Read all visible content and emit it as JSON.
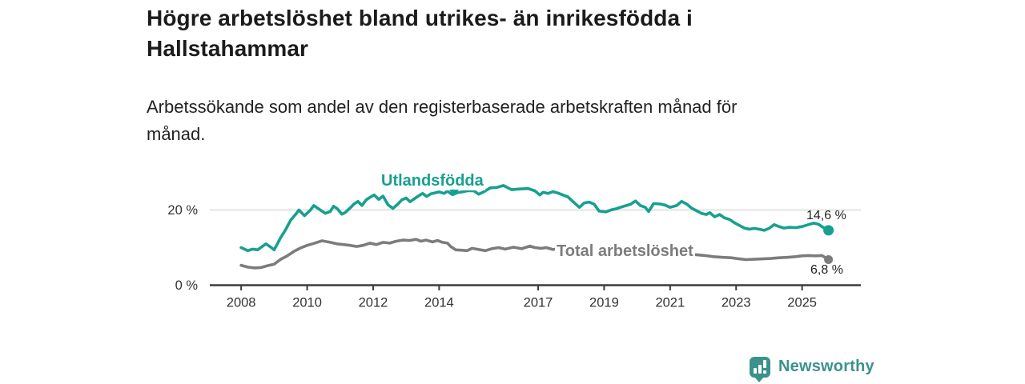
{
  "header": {
    "title_lines": [
      "Högre arbetslöshet bland utrikes- än inrikesfödda i",
      "Hallstahammar"
    ],
    "subtitle_lines": [
      "Arbetssökande som andel av den registerbaserade arbetskraften månad för",
      "månad."
    ]
  },
  "chart_data": {
    "type": "line",
    "unit": "%",
    "x_domain": [
      2007.05,
      2026.78
    ],
    "ylim": [
      0,
      28
    ],
    "grid": "single light horizontal gridline at 20 %",
    "legend_position": "inline labels on lines, value labels at line ends",
    "axis": {
      "line_color": "#3c3c3c",
      "grid_color": "#dbdbdb",
      "label_color": "#333333"
    },
    "x_ticks": [
      {
        "v": 2008,
        "label": "2008"
      },
      {
        "v": 2010,
        "label": "2010"
      },
      {
        "v": 2012,
        "label": "2012"
      },
      {
        "v": 2014,
        "label": "2014"
      },
      {
        "v": 2017,
        "label": "2017"
      },
      {
        "v": 2019,
        "label": "2019"
      },
      {
        "v": 2021,
        "label": "2021"
      },
      {
        "v": 2023,
        "label": "2023"
      },
      {
        "v": 2025,
        "label": "2025"
      }
    ],
    "y_ticks": [
      {
        "v": 0,
        "label": "0 %"
      },
      {
        "v": 20,
        "label": "20 %"
      }
    ],
    "series": [
      {
        "name": "Utlandsfödda",
        "color": "#17a08f",
        "end_label": "14,6 %",
        "end_value": 14.6,
        "points": [
          [
            2008.0,
            10.0
          ],
          [
            2008.2,
            9.2
          ],
          [
            2008.35,
            9.6
          ],
          [
            2008.5,
            9.4
          ],
          [
            2008.75,
            11.0
          ],
          [
            2008.9,
            10.1
          ],
          [
            2009.0,
            9.4
          ],
          [
            2009.2,
            12.7
          ],
          [
            2009.35,
            14.8
          ],
          [
            2009.5,
            17.3
          ],
          [
            2009.65,
            18.8
          ],
          [
            2009.75,
            20.0
          ],
          [
            2009.92,
            18.5
          ],
          [
            2010.1,
            20.0
          ],
          [
            2010.2,
            21.2
          ],
          [
            2010.35,
            20.3
          ],
          [
            2010.55,
            19.1
          ],
          [
            2010.7,
            19.6
          ],
          [
            2010.8,
            21.0
          ],
          [
            2010.92,
            20.3
          ],
          [
            2011.05,
            18.9
          ],
          [
            2011.15,
            19.3
          ],
          [
            2011.3,
            20.5
          ],
          [
            2011.42,
            21.6
          ],
          [
            2011.54,
            22.3
          ],
          [
            2011.66,
            21.2
          ],
          [
            2011.79,
            22.7
          ],
          [
            2011.91,
            23.4
          ],
          [
            2012.03,
            24.0
          ],
          [
            2012.17,
            22.8
          ],
          [
            2012.3,
            23.7
          ],
          [
            2012.45,
            21.4
          ],
          [
            2012.6,
            20.4
          ],
          [
            2012.75,
            21.6
          ],
          [
            2012.87,
            22.7
          ],
          [
            2013.0,
            23.2
          ],
          [
            2013.12,
            22.2
          ],
          [
            2013.25,
            23.0
          ],
          [
            2013.4,
            23.9
          ],
          [
            2013.5,
            24.4
          ],
          [
            2013.62,
            23.6
          ],
          [
            2013.75,
            24.3
          ],
          [
            2014.0,
            24.8
          ],
          [
            2014.15,
            24.4
          ],
          [
            2014.25,
            25.0
          ],
          [
            2014.4,
            24.1
          ],
          [
            2014.55,
            24.6
          ],
          [
            2014.7,
            24.8
          ],
          [
            2014.85,
            25.1
          ],
          [
            2015.05,
            25.1
          ],
          [
            2015.2,
            24.2
          ],
          [
            2015.35,
            24.8
          ],
          [
            2015.55,
            25.9
          ],
          [
            2015.75,
            26.0
          ],
          [
            2015.95,
            26.5
          ],
          [
            2016.2,
            25.4
          ],
          [
            2016.45,
            25.6
          ],
          [
            2016.7,
            25.7
          ],
          [
            2016.9,
            25.1
          ],
          [
            2017.05,
            24.0
          ],
          [
            2017.15,
            24.7
          ],
          [
            2017.3,
            24.4
          ],
          [
            2017.45,
            24.9
          ],
          [
            2017.6,
            24.5
          ],
          [
            2017.75,
            24.0
          ],
          [
            2017.9,
            23.5
          ],
          [
            2018.1,
            21.9
          ],
          [
            2018.25,
            20.7
          ],
          [
            2018.4,
            21.9
          ],
          [
            2018.55,
            22.1
          ],
          [
            2018.7,
            21.5
          ],
          [
            2018.85,
            19.7
          ],
          [
            2019.05,
            19.5
          ],
          [
            2019.2,
            20.0
          ],
          [
            2019.35,
            20.3
          ],
          [
            2019.6,
            21.0
          ],
          [
            2019.8,
            21.5
          ],
          [
            2019.95,
            22.4
          ],
          [
            2020.1,
            21.2
          ],
          [
            2020.25,
            20.7
          ],
          [
            2020.35,
            19.6
          ],
          [
            2020.5,
            21.7
          ],
          [
            2020.7,
            21.6
          ],
          [
            2020.85,
            21.3
          ],
          [
            2021.0,
            20.7
          ],
          [
            2021.2,
            21.2
          ],
          [
            2021.35,
            22.3
          ],
          [
            2021.5,
            21.6
          ],
          [
            2021.65,
            20.5
          ],
          [
            2021.8,
            19.8
          ],
          [
            2021.95,
            19.1
          ],
          [
            2022.1,
            18.8
          ],
          [
            2022.2,
            19.3
          ],
          [
            2022.35,
            18.2
          ],
          [
            2022.5,
            18.8
          ],
          [
            2022.65,
            17.9
          ],
          [
            2022.8,
            17.5
          ],
          [
            2022.95,
            16.6
          ],
          [
            2023.1,
            15.9
          ],
          [
            2023.25,
            15.2
          ],
          [
            2023.4,
            14.9
          ],
          [
            2023.55,
            15.1
          ],
          [
            2023.7,
            14.9
          ],
          [
            2023.85,
            14.6
          ],
          [
            2024.0,
            15.1
          ],
          [
            2024.15,
            16.1
          ],
          [
            2024.3,
            15.6
          ],
          [
            2024.45,
            15.2
          ],
          [
            2024.6,
            15.4
          ],
          [
            2024.8,
            15.3
          ],
          [
            2025.0,
            15.6
          ],
          [
            2025.15,
            16.0
          ],
          [
            2025.35,
            16.5
          ],
          [
            2025.5,
            16.2
          ],
          [
            2025.65,
            15.3
          ],
          [
            2025.8,
            14.6
          ]
        ]
      },
      {
        "name": "Total arbetslöshet",
        "color": "#7c7c7c",
        "end_label": "6,8 %",
        "end_value": 6.8,
        "points": [
          [
            2008.0,
            5.3
          ],
          [
            2008.2,
            4.8
          ],
          [
            2008.4,
            4.6
          ],
          [
            2008.6,
            4.7
          ],
          [
            2008.8,
            5.2
          ],
          [
            2009.0,
            5.6
          ],
          [
            2009.2,
            6.9
          ],
          [
            2009.4,
            7.8
          ],
          [
            2009.6,
            9.0
          ],
          [
            2009.8,
            9.9
          ],
          [
            2010.0,
            10.6
          ],
          [
            2010.2,
            11.1
          ],
          [
            2010.45,
            11.8
          ],
          [
            2010.7,
            11.4
          ],
          [
            2010.9,
            11.0
          ],
          [
            2011.1,
            10.8
          ],
          [
            2011.3,
            10.6
          ],
          [
            2011.5,
            10.3
          ],
          [
            2011.7,
            10.6
          ],
          [
            2011.9,
            11.2
          ],
          [
            2012.1,
            10.8
          ],
          [
            2012.3,
            11.4
          ],
          [
            2012.5,
            11.2
          ],
          [
            2012.7,
            11.7
          ],
          [
            2012.9,
            12.0
          ],
          [
            2013.1,
            11.9
          ],
          [
            2013.3,
            12.2
          ],
          [
            2013.45,
            11.7
          ],
          [
            2013.6,
            12.0
          ],
          [
            2013.8,
            11.5
          ],
          [
            2013.95,
            11.9
          ],
          [
            2014.1,
            11.4
          ],
          [
            2014.25,
            11.2
          ],
          [
            2014.35,
            10.3
          ],
          [
            2014.5,
            9.4
          ],
          [
            2014.7,
            9.3
          ],
          [
            2014.85,
            9.2
          ],
          [
            2015.0,
            9.8
          ],
          [
            2015.2,
            9.5
          ],
          [
            2015.4,
            9.2
          ],
          [
            2015.6,
            9.7
          ],
          [
            2015.8,
            10.0
          ],
          [
            2016.0,
            9.6
          ],
          [
            2016.25,
            10.1
          ],
          [
            2016.5,
            9.7
          ],
          [
            2016.75,
            10.4
          ],
          [
            2016.9,
            10.0
          ],
          [
            2017.1,
            9.8
          ],
          [
            2017.25,
            10.0
          ],
          [
            2017.45,
            9.5
          ],
          [
            2017.6,
            9.7
          ],
          [
            2017.8,
            9.3
          ],
          [
            2018.0,
            9.0
          ],
          [
            2018.25,
            9.2
          ],
          [
            2018.5,
            8.9
          ],
          [
            2018.75,
            9.0
          ],
          [
            2019.0,
            8.8
          ],
          [
            2019.3,
            8.5
          ],
          [
            2019.6,
            8.4
          ],
          [
            2019.9,
            8.6
          ],
          [
            2020.2,
            8.9
          ],
          [
            2020.45,
            9.3
          ],
          [
            2020.7,
            9.1
          ],
          [
            2020.95,
            8.9
          ],
          [
            2021.2,
            8.6
          ],
          [
            2021.5,
            8.3
          ],
          [
            2021.8,
            8.1
          ],
          [
            2022.05,
            7.9
          ],
          [
            2022.3,
            7.6
          ],
          [
            2022.6,
            7.4
          ],
          [
            2022.85,
            7.3
          ],
          [
            2023.1,
            7.0
          ],
          [
            2023.3,
            6.8
          ],
          [
            2023.55,
            6.9
          ],
          [
            2023.8,
            7.0
          ],
          [
            2024.05,
            7.1
          ],
          [
            2024.3,
            7.3
          ],
          [
            2024.55,
            7.4
          ],
          [
            2024.8,
            7.6
          ],
          [
            2025.0,
            7.8
          ],
          [
            2025.2,
            7.9
          ],
          [
            2025.4,
            7.8
          ],
          [
            2025.6,
            7.9
          ],
          [
            2025.8,
            6.8
          ]
        ]
      }
    ]
  },
  "branding": {
    "logo_text": "Newsworthy",
    "logo_color": "#3b928c",
    "logo_icon": "bar-chart-pin-icon"
  }
}
